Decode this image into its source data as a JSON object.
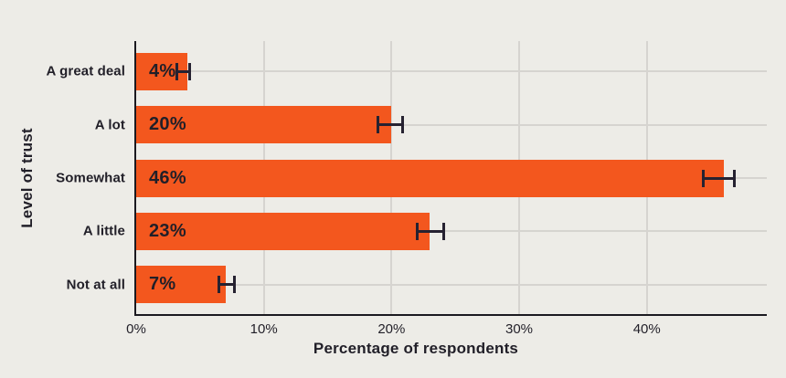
{
  "chart_data": {
    "type": "bar",
    "orientation": "horizontal",
    "title": "",
    "xlabel": "Percentage of respondents",
    "ylabel": "Level of trust",
    "categories": [
      "A great deal",
      "A lot",
      "Somewhat",
      "A little",
      "Not at all"
    ],
    "values": [
      4,
      20,
      46,
      23,
      7
    ],
    "value_labels": [
      "4%",
      "20%",
      "46%",
      "23%",
      "7%"
    ],
    "error_bars": [
      {
        "low": 3.1,
        "high": 4.3
      },
      {
        "low": 18.8,
        "high": 21.0
      },
      {
        "low": 44.3,
        "high": 47.0
      },
      {
        "low": 21.9,
        "high": 24.2
      },
      {
        "low": 6.4,
        "high": 7.8
      }
    ],
    "x_ticks": [
      {
        "value": 0,
        "label": "0%"
      },
      {
        "value": 10,
        "label": "10%"
      },
      {
        "value": 20,
        "label": "20%"
      },
      {
        "value": 30,
        "label": "30%"
      },
      {
        "value": 40,
        "label": "40%"
      }
    ],
    "xlim": [
      0,
      49.4
    ],
    "grid": {
      "vertical_at": [
        10,
        20,
        30,
        40
      ],
      "horizontal": "category-centers"
    },
    "legend": "none"
  },
  "colors": {
    "background": "#EDECE7",
    "bar": "#F3571E",
    "gridline": "#D6D4D0",
    "axis_line": "#1B1A20",
    "error_bar": "#262231",
    "text": "#211F28"
  }
}
